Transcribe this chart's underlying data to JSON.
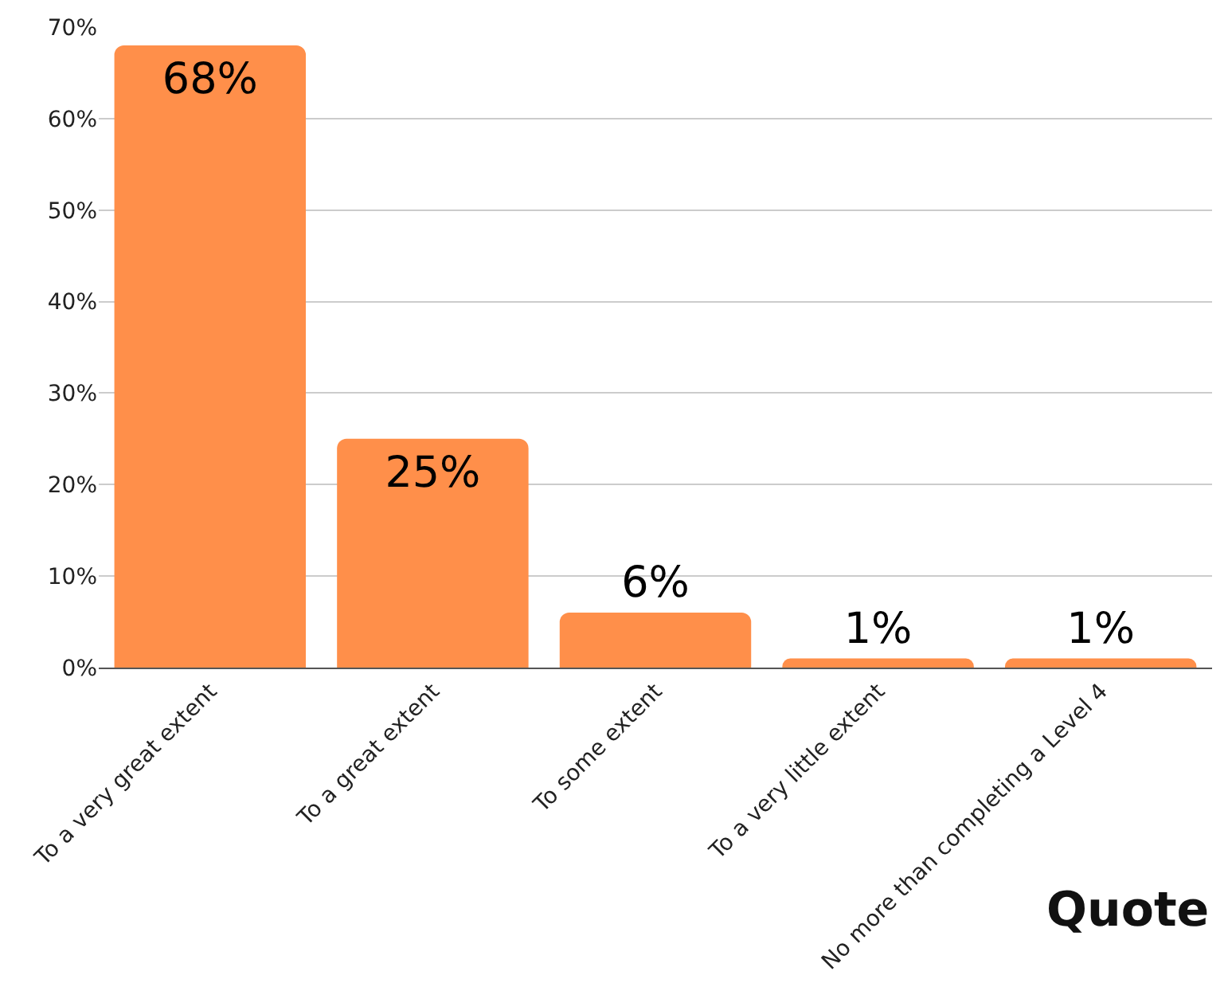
{
  "chart_data": {
    "type": "bar",
    "categories": [
      "To a very great extent",
      "To a great extent",
      "To some extent",
      "To a very little extent",
      "No more than completing a Level 4"
    ],
    "values": [
      68,
      25,
      6,
      1,
      1
    ],
    "value_labels": [
      "68%",
      "25%",
      "6%",
      "1%",
      "1%"
    ],
    "color": "#ff8f4a",
    "ylim": [
      0,
      70
    ],
    "yticks": [
      {
        "value": 0,
        "label": "0%"
      },
      {
        "value": 10,
        "label": "10%"
      },
      {
        "value": 20,
        "label": "20%"
      },
      {
        "value": 30,
        "label": "30%"
      },
      {
        "value": 40,
        "label": "40%"
      },
      {
        "value": 50,
        "label": "50%"
      },
      {
        "value": 60,
        "label": "60%"
      },
      {
        "value": 70,
        "label": "70%"
      }
    ],
    "grid": "y",
    "annotations": [
      "Quote"
    ]
  }
}
